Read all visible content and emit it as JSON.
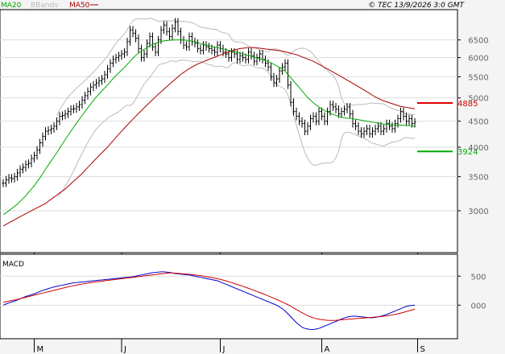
{
  "header": {
    "legend_ma20": "MA20",
    "legend_bbands": "BBands",
    "legend_ma50": "MA50",
    "copyright": "© TEC 13/9/2026 3:0 GMT"
  },
  "colors": {
    "background": "#f4f4f4",
    "panel_bg": "#ffffff",
    "grid": "#dddddd",
    "price": "#000000",
    "ma20": "#00aa00",
    "ma50": "#aa0000",
    "bbands": "#bbbbbb",
    "macd": "#0000cc",
    "signal": "#cc0000",
    "resistance": "#dd0000",
    "support": "#00aa00"
  },
  "macd_panel": {
    "label": "MACD"
  },
  "chart_data": [
    {
      "type": "ohlc",
      "panel": "price",
      "y_scale": "log",
      "ylim": [
        2500,
        7400
      ],
      "y_ticks": [
        3000,
        3500,
        4000,
        4500,
        5000,
        5500,
        6000,
        6500
      ],
      "y_tick_labels": [
        "3000",
        "3500",
        "4000",
        "4500",
        "5000",
        "5500",
        "6000",
        "6500"
      ],
      "x_month_labels": [
        "M",
        "J",
        "J",
        "A",
        "S"
      ],
      "x_month_start_index": [
        11,
        42,
        77,
        113,
        147
      ],
      "levels": [
        {
          "name": "resistance",
          "value": 4885,
          "label": "4885"
        },
        {
          "name": "support",
          "value": 3924,
          "label": "3924"
        }
      ],
      "close": [
        3400,
        3450,
        3480,
        3470,
        3500,
        3560,
        3620,
        3650,
        3700,
        3720,
        3800,
        3850,
        3950,
        4080,
        4200,
        4300,
        4320,
        4350,
        4400,
        4500,
        4600,
        4620,
        4650,
        4700,
        4750,
        4760,
        4800,
        4850,
        4950,
        5050,
        5150,
        5250,
        5300,
        5350,
        5400,
        5450,
        5550,
        5700,
        5850,
        5950,
        6000,
        6050,
        6100,
        6150,
        6450,
        6800,
        6700,
        6550,
        6250,
        6000,
        6100,
        6400,
        6600,
        6300,
        6150,
        6500,
        6800,
        6950,
        6750,
        6600,
        6850,
        7050,
        6750,
        6500,
        6350,
        6300,
        6600,
        6450,
        6400,
        6250,
        6200,
        6350,
        6300,
        6250,
        6200,
        6150,
        6350,
        6250,
        6150,
        6100,
        6000,
        6150,
        6100,
        5950,
        6050,
        6000,
        5950,
        6150,
        6050,
        5900,
        6000,
        6100,
        5950,
        5850,
        5750,
        5500,
        5350,
        5450,
        5650,
        5750,
        5850,
        5300,
        4900,
        4700,
        4600,
        4500,
        4450,
        4300,
        4400,
        4550,
        4600,
        4500,
        4700,
        4600,
        4500,
        4700,
        4850,
        4800,
        4750,
        4650,
        4700,
        4750,
        4800,
        4650,
        4450,
        4400,
        4300,
        4250,
        4300,
        4350,
        4250,
        4300,
        4350,
        4400,
        4300,
        4350,
        4450,
        4400,
        4350,
        4450,
        4550,
        4700,
        4600,
        4500,
        4550,
        4450,
        4480
      ],
      "series": [
        {
          "name": "MA20",
          "values": [
            2950,
            2970,
            3000,
            3030,
            3060,
            3090,
            3130,
            3170,
            3210,
            3260,
            3310,
            3360,
            3420,
            3480,
            3550,
            3620,
            3690,
            3760,
            3830,
            3900,
            3980,
            4060,
            4140,
            4220,
            4300,
            4380,
            4460,
            4540,
            4620,
            4700,
            4780,
            4860,
            4940,
            5020,
            5090,
            5160,
            5230,
            5300,
            5380,
            5460,
            5530,
            5600,
            5670,
            5740,
            5820,
            5900,
            5980,
            6060,
            6120,
            6180,
            6230,
            6280,
            6330,
            6370,
            6400,
            6430,
            6450,
            6470,
            6480,
            6490,
            6500,
            6500,
            6500,
            6500,
            6500,
            6490,
            6480,
            6460,
            6440,
            6420,
            6390,
            6370,
            6350,
            6330,
            6310,
            6290,
            6280,
            6260,
            6240,
            6220,
            6200,
            6180,
            6160,
            6140,
            6120,
            6100,
            6080,
            6060,
            6040,
            6010,
            5990,
            5970,
            5950,
            5920,
            5890,
            5860,
            5820,
            5780,
            5740,
            5700,
            5640,
            5560,
            5480,
            5400,
            5320,
            5240,
            5160,
            5080,
            5010,
            4950,
            4890,
            4840,
            4800,
            4760,
            4720,
            4690,
            4660,
            4640,
            4620,
            4600,
            4580,
            4570,
            4560,
            4560,
            4550,
            4540,
            4530,
            4520,
            4510,
            4500,
            4490,
            4480,
            4470,
            4460,
            4450,
            4440,
            4440,
            4430,
            4430,
            4420,
            4420,
            4420,
            4420,
            4410,
            4410,
            4400,
            4400
          ]
        },
        {
          "name": "MA50",
          "values": [
            2800,
            2820,
            2840,
            2860,
            2880,
            2900,
            2920,
            2940,
            2960,
            2980,
            3000,
            3020,
            3040,
            3060,
            3080,
            3100,
            3130,
            3160,
            3190,
            3220,
            3250,
            3280,
            3310,
            3350,
            3390,
            3430,
            3470,
            3510,
            3550,
            3600,
            3650,
            3700,
            3750,
            3800,
            3850,
            3900,
            3950,
            4000,
            4060,
            4120,
            4180,
            4240,
            4300,
            4360,
            4420,
            4480,
            4540,
            4600,
            4660,
            4720,
            4780,
            4840,
            4900,
            4960,
            5020,
            5080,
            5140,
            5200,
            5260,
            5320,
            5380,
            5440,
            5500,
            5560,
            5610,
            5660,
            5710,
            5750,
            5790,
            5830,
            5860,
            5890,
            5920,
            5950,
            5980,
            6010,
            6040,
            6070,
            6100,
            6130,
            6160,
            6190,
            6210,
            6230,
            6250,
            6260,
            6270,
            6280,
            6280,
            6280,
            6270,
            6260,
            6250,
            6240,
            6230,
            6220,
            6210,
            6200,
            6190,
            6180,
            6160,
            6140,
            6120,
            6100,
            6080,
            6050,
            6020,
            5990,
            5960,
            5930,
            5900,
            5860,
            5820,
            5780,
            5740,
            5700,
            5660,
            5620,
            5580,
            5540,
            5500,
            5460,
            5420,
            5380,
            5340,
            5300,
            5260,
            5220,
            5180,
            5140,
            5100,
            5060,
            5020,
            4990,
            4960,
            4930,
            4910,
            4890,
            4870,
            4850,
            4830,
            4810,
            4800,
            4790,
            4780,
            4770,
            4760
          ]
        }
      ]
    },
    {
      "type": "line",
      "panel": "macd",
      "ylim": [
        -550,
        850
      ],
      "y_ticks": [
        0,
        500
      ],
      "y_tick_labels": [
        "000",
        "500"
      ],
      "series": [
        {
          "name": "MACD",
          "values": [
            0,
            20,
            40,
            55,
            70,
            90,
            110,
            130,
            150,
            165,
            180,
            195,
            215,
            235,
            255,
            270,
            285,
            300,
            315,
            325,
            335,
            345,
            355,
            365,
            375,
            385,
            390,
            395,
            400,
            405,
            410,
            415,
            420,
            425,
            430,
            435,
            440,
            445,
            450,
            455,
            460,
            465,
            470,
            475,
            480,
            485,
            490,
            500,
            510,
            520,
            530,
            540,
            550,
            560,
            565,
            570,
            575,
            575,
            570,
            565,
            555,
            545,
            540,
            535,
            530,
            525,
            520,
            510,
            500,
            490,
            480,
            470,
            460,
            450,
            440,
            430,
            420,
            400,
            380,
            360,
            340,
            320,
            300,
            280,
            260,
            240,
            220,
            200,
            180,
            160,
            140,
            120,
            100,
            80,
            60,
            40,
            20,
            0,
            -30,
            -60,
            -100,
            -150,
            -200,
            -250,
            -300,
            -340,
            -380,
            -400,
            -410,
            -420,
            -420,
            -410,
            -400,
            -380,
            -360,
            -340,
            -320,
            -300,
            -280,
            -260,
            -240,
            -220,
            -205,
            -195,
            -190,
            -190,
            -195,
            -200,
            -205,
            -210,
            -215,
            -215,
            -210,
            -200,
            -190,
            -175,
            -160,
            -140,
            -120,
            -100,
            -80,
            -60,
            -40,
            -20,
            -10,
            -5,
            0
          ]
        },
        {
          "name": "Signal",
          "values": [
            50,
            60,
            70,
            80,
            90,
            100,
            112,
            124,
            136,
            148,
            160,
            172,
            184,
            196,
            208,
            220,
            232,
            244,
            256,
            268,
            280,
            292,
            304,
            316,
            326,
            336,
            346,
            356,
            364,
            372,
            380,
            388,
            396,
            402,
            408,
            414,
            420,
            426,
            432,
            438,
            444,
            450,
            456,
            462,
            468,
            474,
            480,
            486,
            492,
            498,
            504,
            510,
            516,
            522,
            528,
            534,
            540,
            545,
            550,
            555,
            555,
            552,
            548,
            544,
            540,
            536,
            532,
            526,
            520,
            514,
            508,
            500,
            492,
            484,
            476,
            466,
            456,
            444,
            432,
            418,
            404,
            390,
            374,
            358,
            342,
            326,
            308,
            290,
            272,
            254,
            236,
            218,
            200,
            180,
            160,
            140,
            120,
            100,
            78,
            56,
            32,
            8,
            -18,
            -46,
            -74,
            -102,
            -130,
            -156,
            -180,
            -200,
            -218,
            -232,
            -242,
            -250,
            -256,
            -260,
            -262,
            -262,
            -260,
            -256,
            -252,
            -248,
            -244,
            -240,
            -236,
            -232,
            -228,
            -224,
            -220,
            -216,
            -212,
            -208,
            -204,
            -200,
            -196,
            -190,
            -184,
            -176,
            -168,
            -158,
            -148,
            -136,
            -124,
            -110,
            -96,
            -82,
            -70
          ]
        }
      ]
    }
  ]
}
